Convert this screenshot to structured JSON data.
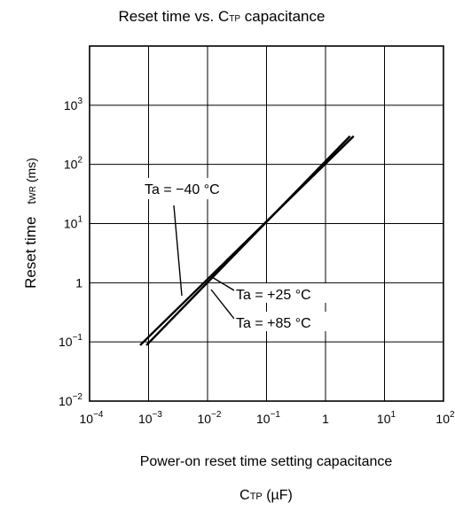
{
  "chart_data": {
    "type": "line",
    "title": "Reset time vs. C",
    "title_sub": "TP",
    "title_rest": " capacitance",
    "xlabel_line1": "Power-on reset time setting capacitance",
    "xlabel_sym": "C",
    "xlabel_sym_sub": "TP",
    "xlabel_unit": " (µF)",
    "ylabel": "Reset time",
    "ylabel_sym": "t",
    "ylabel_sym_sub": "WR",
    "ylabel_unit": " (ms)",
    "x_scale": "log",
    "y_scale": "log",
    "xlim": [
      0.0001,
      100
    ],
    "ylim": [
      0.01,
      10000
    ],
    "grid": true,
    "x_ticks": [
      {
        "value": 0.0001,
        "base": "10",
        "exp": "−4"
      },
      {
        "value": 0.001,
        "base": "10",
        "exp": "−3"
      },
      {
        "value": 0.01,
        "base": "10",
        "exp": "−2"
      },
      {
        "value": 0.1,
        "base": "10",
        "exp": "−1"
      },
      {
        "value": 1,
        "base": "1",
        "exp": ""
      },
      {
        "value": 10,
        "base": "10",
        "exp": "1"
      },
      {
        "value": 100,
        "base": "10",
        "exp": "2"
      }
    ],
    "y_ticks": [
      {
        "value": 0.01,
        "base": "10",
        "exp": "−2"
      },
      {
        "value": 0.1,
        "base": "10",
        "exp": "−1"
      },
      {
        "value": 1,
        "base": "1",
        "exp": ""
      },
      {
        "value": 10,
        "base": "10",
        "exp": "1"
      },
      {
        "value": 100,
        "base": "10",
        "exp": "2"
      },
      {
        "value": 1000,
        "base": "10",
        "exp": "3"
      }
    ],
    "series": [
      {
        "name": "Ta = −40 °C",
        "x": [
          0.00072,
          3.0
        ],
        "y": [
          0.088,
          300
        ]
      },
      {
        "name": "Ta = +25 °C",
        "x": [
          0.00092,
          2.6
        ],
        "y": [
          0.088,
          300
        ]
      },
      {
        "name": "Ta = +85 °C",
        "x": [
          0.00092,
          2.6
        ],
        "y": [
          0.088,
          300
        ]
      }
    ],
    "annotations": [
      {
        "text": "Ta = −40 °C",
        "series": 0
      },
      {
        "text": "Ta = +25 °C",
        "series": 1
      },
      {
        "text": "Ta = +85 °C",
        "series": 2
      }
    ],
    "line_color": "#000000",
    "grid_color": "#000000"
  }
}
